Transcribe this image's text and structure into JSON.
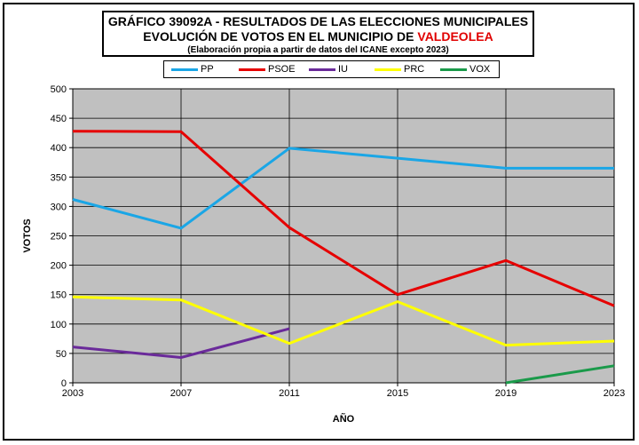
{
  "title_line1": "GRÁFICO 39092A - RESULTADOS DE LAS ELECCIONES MUNICIPALES",
  "title_line2_prefix": "EVOLUCIÓN DE VOTOS EN EL MUNICIPIO DE ",
  "title_line2_highlight": "VALDEOLEA",
  "subtitle": "(Elaboración propia a partir de datos del ICANE excepto 2023)",
  "colors": {
    "plot_background": "#c0c0c0",
    "title_highlight": "#e00000"
  },
  "chart_data": {
    "type": "line",
    "title": "GRÁFICO 39092A - RESULTADOS DE LAS ELECCIONES MUNICIPALES",
    "xlabel": "AÑO",
    "ylabel": "VOTOS",
    "x": [
      "2003",
      "2007",
      "2011",
      "2015",
      "2019",
      "2023"
    ],
    "ylim": [
      0,
      500
    ],
    "yticks": [
      0,
      50,
      100,
      150,
      200,
      250,
      300,
      350,
      400,
      450,
      500
    ],
    "grid": true,
    "legend_position": "top",
    "series": [
      {
        "name": "PP",
        "color": "#1aa6e6",
        "values": [
          312,
          263,
          399,
          382,
          365,
          365
        ]
      },
      {
        "name": "PSOE",
        "color": "#e60000",
        "values": [
          428,
          427,
          264,
          150,
          208,
          131
        ]
      },
      {
        "name": "IU",
        "color": "#6a2a9a",
        "values": [
          61,
          43,
          92,
          null,
          null,
          null
        ]
      },
      {
        "name": "PRC",
        "color": "#ffff00",
        "values": [
          146,
          141,
          67,
          138,
          64,
          71
        ]
      },
      {
        "name": "VOX",
        "color": "#1a9a4a",
        "values": [
          null,
          null,
          null,
          null,
          0,
          29
        ]
      }
    ]
  }
}
